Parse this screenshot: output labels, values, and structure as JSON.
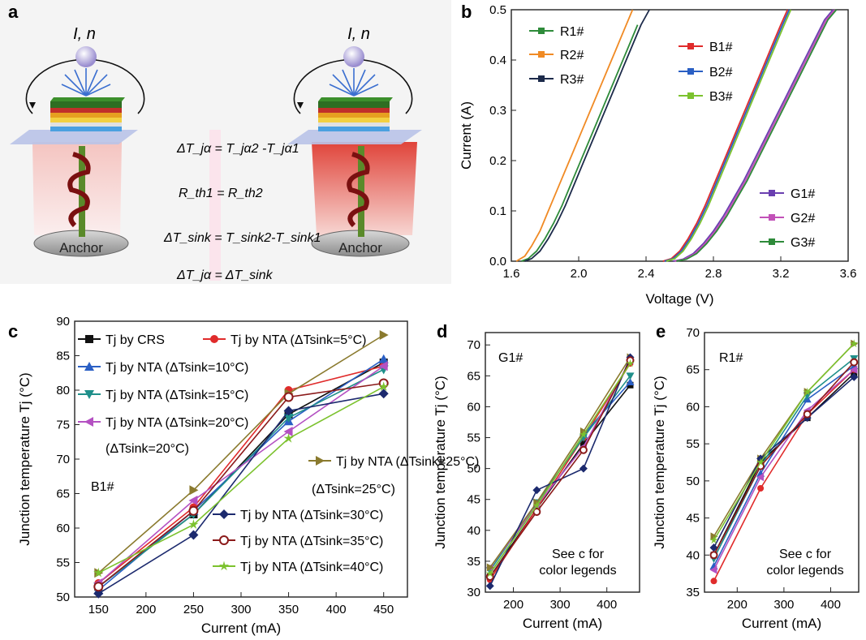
{
  "panel_a": {
    "label": "a",
    "current_symbol": "I, n",
    "anchor_left": "Anchor",
    "anchor_right": "Anchor",
    "eq1": "ΔT_jα = T_jα2 -T_jα1",
    "eq2": "R_th1 = R_th2",
    "eq3": "ΔT_sink = T_sink2-T_sink1",
    "eq4": "ΔT_jα = ΔT_sink"
  },
  "chart_data": [
    {
      "id": "b",
      "label": "b",
      "type": "line",
      "xlabel": "Voltage (V)",
      "ylabel": "Current (A)",
      "xlim": [
        1.6,
        3.6
      ],
      "ylim": [
        0.0,
        0.5
      ],
      "xticks": [
        "1.6",
        "2.0",
        "2.4",
        "2.8",
        "3.2",
        "3.6"
      ],
      "yticks": [
        "0.0",
        "0.1",
        "0.2",
        "0.3",
        "0.4",
        "0.5"
      ],
      "series": [
        {
          "name": "R1#",
          "color": "#2e8b3a",
          "x": [
            1.66,
            1.7,
            1.75,
            1.8,
            1.85,
            1.9,
            1.95,
            2.0,
            2.05,
            2.1,
            2.15,
            2.2,
            2.25,
            2.3,
            2.35
          ],
          "y": [
            0.0,
            0.005,
            0.02,
            0.045,
            0.075,
            0.11,
            0.15,
            0.19,
            0.23,
            0.27,
            0.31,
            0.35,
            0.39,
            0.43,
            0.47
          ]
        },
        {
          "name": "R2#",
          "color": "#f08a24",
          "x": [
            1.63,
            1.68,
            1.72,
            1.77,
            1.82,
            1.87,
            1.92,
            1.97,
            2.02,
            2.07,
            2.12,
            2.17,
            2.22,
            2.27,
            2.32
          ],
          "y": [
            0.0,
            0.01,
            0.03,
            0.06,
            0.1,
            0.14,
            0.18,
            0.22,
            0.26,
            0.3,
            0.34,
            0.38,
            0.42,
            0.46,
            0.5
          ]
        },
        {
          "name": "R3#",
          "color": "#1c2a4a",
          "x": [
            1.68,
            1.72,
            1.77,
            1.82,
            1.87,
            1.92,
            1.97,
            2.02,
            2.07,
            2.12,
            2.17,
            2.22,
            2.27,
            2.32,
            2.37,
            2.42
          ],
          "y": [
            0.0,
            0.005,
            0.02,
            0.045,
            0.075,
            0.11,
            0.15,
            0.19,
            0.23,
            0.27,
            0.31,
            0.35,
            0.39,
            0.43,
            0.47,
            0.5
          ]
        },
        {
          "name": "B1#",
          "color": "#e02b2b",
          "x": [
            2.5,
            2.55,
            2.6,
            2.65,
            2.7,
            2.75,
            2.8,
            2.85,
            2.9,
            2.95,
            3.0,
            3.05,
            3.1,
            3.15,
            3.2,
            3.24
          ],
          "y": [
            0.0,
            0.005,
            0.02,
            0.045,
            0.075,
            0.11,
            0.15,
            0.19,
            0.23,
            0.27,
            0.31,
            0.35,
            0.39,
            0.43,
            0.47,
            0.5
          ]
        },
        {
          "name": "B2#",
          "color": "#2a5fc4",
          "x": [
            2.51,
            2.56,
            2.61,
            2.66,
            2.71,
            2.76,
            2.81,
            2.86,
            2.91,
            2.96,
            3.01,
            3.06,
            3.11,
            3.16,
            3.21,
            3.25
          ],
          "y": [
            0.0,
            0.005,
            0.02,
            0.045,
            0.075,
            0.11,
            0.15,
            0.19,
            0.23,
            0.27,
            0.31,
            0.35,
            0.39,
            0.43,
            0.47,
            0.5
          ]
        },
        {
          "name": "B3#",
          "color": "#7cc22e",
          "x": [
            2.52,
            2.57,
            2.62,
            2.67,
            2.72,
            2.77,
            2.82,
            2.87,
            2.92,
            2.97,
            3.02,
            3.07,
            3.12,
            3.17,
            3.22,
            3.26
          ],
          "y": [
            0.0,
            0.005,
            0.02,
            0.045,
            0.075,
            0.11,
            0.15,
            0.19,
            0.23,
            0.27,
            0.31,
            0.35,
            0.39,
            0.43,
            0.47,
            0.5
          ]
        },
        {
          "name": "G1#",
          "color": "#6a3fb0",
          "x": [
            2.56,
            2.62,
            2.68,
            2.74,
            2.8,
            2.86,
            2.92,
            2.98,
            3.04,
            3.1,
            3.16,
            3.22,
            3.28,
            3.34,
            3.4,
            3.46,
            3.51
          ],
          "y": [
            0.0,
            0.004,
            0.015,
            0.035,
            0.06,
            0.09,
            0.125,
            0.16,
            0.2,
            0.24,
            0.28,
            0.32,
            0.36,
            0.4,
            0.44,
            0.48,
            0.5
          ]
        },
        {
          "name": "G2#",
          "color": "#c251b8",
          "x": [
            2.57,
            2.63,
            2.69,
            2.75,
            2.81,
            2.87,
            2.93,
            2.99,
            3.05,
            3.11,
            3.17,
            3.23,
            3.29,
            3.35,
            3.41,
            3.47,
            3.52
          ],
          "y": [
            0.0,
            0.004,
            0.015,
            0.035,
            0.06,
            0.09,
            0.125,
            0.16,
            0.2,
            0.24,
            0.28,
            0.32,
            0.36,
            0.4,
            0.44,
            0.48,
            0.5
          ]
        },
        {
          "name": "G3#",
          "color": "#2e8b3a",
          "x": [
            2.58,
            2.64,
            2.7,
            2.76,
            2.82,
            2.88,
            2.94,
            3.0,
            3.06,
            3.12,
            3.18,
            3.24,
            3.3,
            3.36,
            3.42,
            3.48,
            3.53
          ],
          "y": [
            0.0,
            0.004,
            0.015,
            0.035,
            0.06,
            0.09,
            0.125,
            0.16,
            0.2,
            0.24,
            0.28,
            0.32,
            0.36,
            0.4,
            0.44,
            0.48,
            0.5
          ]
        }
      ]
    },
    {
      "id": "c",
      "label": "c",
      "type": "line",
      "xlabel": "Current (mA)",
      "ylabel": "Junction temperature Tj (°C)",
      "xlim": [
        125,
        475
      ],
      "ylim": [
        50,
        90
      ],
      "xticks": [
        "150",
        "200",
        "250",
        "300",
        "350",
        "400",
        "450"
      ],
      "yticks": [
        "50",
        "55",
        "60",
        "65",
        "70",
        "75",
        "80",
        "85",
        "90"
      ],
      "annotation": "B1#",
      "categories": [
        150,
        250,
        350,
        450
      ],
      "series": [
        {
          "name": "Tj by CRS",
          "color": "#111111",
          "marker": "square",
          "values": [
            51.5,
            62.0,
            76.5,
            84.0
          ]
        },
        {
          "name": "Tj by NTA (ΔTsink=5°C)",
          "color": "#e02b2b",
          "marker": "circle",
          "values": [
            52.0,
            63.0,
            80.0,
            83.5
          ]
        },
        {
          "name": "Tj by NTA (ΔTsink=10°C)",
          "color": "#2a5fc4",
          "marker": "triangle-up",
          "values": [
            51.0,
            62.5,
            75.5,
            84.5
          ]
        },
        {
          "name": "Tj by NTA (ΔTsink=15°C)",
          "color": "#1f8f8a",
          "marker": "triangle-down",
          "values": [
            51.5,
            62.0,
            76.0,
            83.0
          ]
        },
        {
          "name": "Tj by NTA (ΔTsink=20°C)",
          "color": "#b451c2",
          "marker": "triangle-left",
          "values": [
            52.0,
            64.0,
            74.0,
            83.5
          ]
        },
        {
          "name": "Tj by NTA (ΔTsink=25°C)",
          "color": "#8a7a2e",
          "marker": "triangle-right",
          "values": [
            53.5,
            65.5,
            79.5,
            88.0
          ]
        },
        {
          "name": "Tj by NTA (ΔTsink=30°C)",
          "color": "#1c2a6e",
          "marker": "diamond",
          "values": [
            50.5,
            59.0,
            77.0,
            79.5
          ]
        },
        {
          "name": "Tj by NTA (ΔTsink=35°C)",
          "color": "#8b1a1a",
          "marker": "circle-open",
          "values": [
            51.5,
            62.5,
            79.0,
            81.0
          ]
        },
        {
          "name": "Tj by NTA (ΔTsink=40°C)",
          "color": "#7cc22e",
          "marker": "star",
          "values": [
            53.5,
            60.5,
            73.0,
            80.5
          ]
        }
      ],
      "legend_lines": [
        {
          "prefix": "T",
          "sub": "j",
          "main": " by CRS",
          "tail": ""
        },
        {
          "prefix": "T",
          "sub": "j",
          "main": " by NTA (ΔT",
          "tail": "sink",
          "end": "=5°C)"
        },
        {
          "prefix": "T",
          "sub": "j",
          "main": " by NTA (ΔT",
          "tail": "sink",
          "end": "=10°C)"
        },
        {
          "prefix": "T",
          "sub": "j",
          "main": " by NTA (ΔT",
          "tail": "sink",
          "end": "=15°C)"
        },
        {
          "prefix": "T",
          "sub": "j",
          "main": " by NTA",
          "tail": ""
        },
        {
          "prefix": "T",
          "sub": "j",
          "main": " by NTA",
          "tail": ""
        },
        {
          "prefix": "T",
          "sub": "j",
          "main": " by NTA (ΔT",
          "tail": "sink",
          "end": "=30°C)"
        },
        {
          "prefix": "T",
          "sub": "j",
          "main": " by NTA (ΔT",
          "tail": "sink",
          "end": "=35°C)"
        },
        {
          "prefix": "T",
          "sub": "j",
          "main": " by NTA (ΔT",
          "tail": "sink",
          "end": "=40°C)"
        }
      ],
      "legend_extra": [
        "(ΔTsink=20°C)",
        "(ΔTsink=25°C)"
      ]
    },
    {
      "id": "d",
      "label": "d",
      "type": "line",
      "xlabel": "Current (mA)",
      "ylabel": "Junction temperature Tj (°C)",
      "xlim": [
        140,
        470
      ],
      "ylim": [
        30,
        72
      ],
      "xticks": [
        "200",
        "300",
        "400"
      ],
      "yticks": [
        "30",
        "35",
        "40",
        "45",
        "50",
        "55",
        "60",
        "65",
        "70"
      ],
      "annotation": "G1#",
      "note": [
        "See c for",
        "color legends"
      ],
      "categories": [
        150,
        250,
        350,
        450
      ],
      "series": [
        {
          "name": "CRS",
          "color": "#111111",
          "marker": "square",
          "values": [
            32.5,
            43.5,
            54.0,
            63.5
          ]
        },
        {
          "name": "5",
          "color": "#e02b2b",
          "marker": "circle",
          "values": [
            32.0,
            43.5,
            55.0,
            67.0
          ]
        },
        {
          "name": "10",
          "color": "#2a5fc4",
          "marker": "triangle-up",
          "values": [
            33.0,
            44.0,
            55.5,
            64.0
          ]
        },
        {
          "name": "15",
          "color": "#1f8f8a",
          "marker": "triangle-down",
          "values": [
            33.5,
            44.5,
            55.0,
            65.0
          ]
        },
        {
          "name": "20",
          "color": "#b451c2",
          "marker": "triangle-left",
          "values": [
            34.0,
            44.0,
            53.5,
            67.5
          ]
        },
        {
          "name": "25",
          "color": "#8a7a2e",
          "marker": "triangle-right",
          "values": [
            34.0,
            44.5,
            56.0,
            68.0
          ]
        },
        {
          "name": "30",
          "color": "#1c2a6e",
          "marker": "diamond",
          "values": [
            31.0,
            46.5,
            50.0,
            68.0
          ]
        },
        {
          "name": "35",
          "color": "#8b1a1a",
          "marker": "circle-open",
          "values": [
            32.5,
            43.0,
            53.0,
            67.5
          ]
        },
        {
          "name": "40",
          "color": "#7cc22e",
          "marker": "star",
          "values": [
            33.0,
            44.0,
            55.5,
            67.0
          ]
        }
      ]
    },
    {
      "id": "e",
      "label": "e",
      "type": "line",
      "xlabel": "Current (mA)",
      "ylabel": "Junction temperature Tj (°C)",
      "xlim": [
        130,
        460
      ],
      "ylim": [
        35,
        70
      ],
      "xticks": [
        "200",
        "300",
        "400"
      ],
      "yticks": [
        "35",
        "40",
        "45",
        "50",
        "55",
        "60",
        "65",
        "70"
      ],
      "annotation": "R1#",
      "note": [
        "See c for",
        "color legends"
      ],
      "categories": [
        150,
        250,
        350,
        450
      ],
      "series": [
        {
          "name": "CRS",
          "color": "#111111",
          "marker": "square",
          "values": [
            40.0,
            52.5,
            58.5,
            64.5
          ]
        },
        {
          "name": "5",
          "color": "#e02b2b",
          "marker": "circle",
          "values": [
            36.5,
            49.0,
            59.0,
            65.0
          ]
        },
        {
          "name": "10",
          "color": "#2a5fc4",
          "marker": "triangle-up",
          "values": [
            38.5,
            51.0,
            61.0,
            65.5
          ]
        },
        {
          "name": "15",
          "color": "#1f8f8a",
          "marker": "triangle-down",
          "values": [
            39.5,
            52.0,
            61.5,
            66.5
          ]
        },
        {
          "name": "20",
          "color": "#b451c2",
          "marker": "triangle-left",
          "values": [
            38.0,
            50.5,
            59.5,
            65.0
          ]
        },
        {
          "name": "25",
          "color": "#8a7a2e",
          "marker": "triangle-right",
          "values": [
            42.5,
            53.0,
            62.0,
            68.5
          ]
        },
        {
          "name": "30",
          "color": "#1c2a6e",
          "marker": "diamond",
          "values": [
            41.0,
            53.0,
            58.5,
            64.0
          ]
        },
        {
          "name": "35",
          "color": "#8b1a1a",
          "marker": "circle-open",
          "values": [
            40.0,
            52.0,
            59.0,
            66.0
          ]
        },
        {
          "name": "40",
          "color": "#7cc22e",
          "marker": "star",
          "values": [
            42.0,
            52.5,
            62.0,
            68.5
          ]
        }
      ]
    }
  ]
}
